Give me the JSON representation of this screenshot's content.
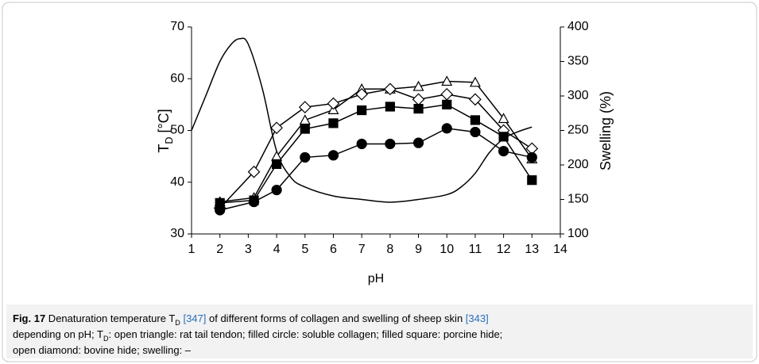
{
  "chart_data": {
    "type": "line",
    "xlabel": "pH",
    "ylabel": [
      {
        "text": "T",
        "style": "normal"
      },
      {
        "text": "D",
        "style": "sub"
      },
      {
        "text": " [°C]",
        "style": "normal"
      }
    ],
    "y2label": "Swelling (%)",
    "xlim": [
      1,
      14
    ],
    "xticks": [
      1,
      2,
      3,
      4,
      5,
      6,
      7,
      8,
      9,
      10,
      11,
      12,
      13,
      14
    ],
    "ylim": [
      30,
      70
    ],
    "yticks": [
      30,
      40,
      50,
      60,
      70
    ],
    "y2lim": [
      100,
      400
    ],
    "y2ticks": [
      100,
      150,
      200,
      250,
      300,
      350,
      400
    ],
    "series": [
      {
        "marker": "triangle",
        "filled": false,
        "color": "#000000",
        "x": [
          2,
          3.2,
          4,
          5,
          6,
          7,
          8,
          9,
          10,
          11,
          12,
          13
        ],
        "values": [
          36.2,
          37,
          45,
          52,
          54,
          58,
          58,
          58.5,
          59.5,
          59.3,
          52.3,
          44.5
        ]
      },
      {
        "marker": "diamond",
        "filled": false,
        "color": "#000000",
        "x": [
          2,
          3.2,
          4,
          5,
          6,
          7,
          8,
          9,
          10,
          11,
          12,
          13
        ],
        "values": [
          35,
          42,
          50.5,
          54.5,
          55.2,
          57,
          58,
          56,
          57,
          56,
          50,
          46.5
        ]
      },
      {
        "marker": "square",
        "filled": true,
        "color": "#000000",
        "x": [
          2,
          3.2,
          4,
          5,
          6,
          7,
          8,
          9,
          10,
          11,
          12,
          13
        ],
        "values": [
          36,
          36.5,
          43.5,
          50.3,
          51.4,
          53.9,
          54.6,
          54.2,
          55,
          52,
          48.8,
          40.4
        ]
      },
      {
        "marker": "circle",
        "filled": true,
        "color": "#000000",
        "x": [
          2,
          3.2,
          4,
          5,
          6,
          7,
          8,
          9,
          10,
          11,
          12,
          13
        ],
        "values": [
          34.6,
          36.2,
          38.5,
          44.8,
          45.2,
          47.4,
          47.4,
          47.6,
          50.4,
          49.7,
          46,
          44.8
        ]
      },
      {
        "marker": "none",
        "axis": "y2",
        "color": "#000000",
        "x": [
          1,
          1.5,
          2,
          2.4,
          2.7,
          3,
          3.5,
          4,
          4.5,
          5,
          6,
          7,
          8,
          9,
          10,
          10.5,
          11,
          11.5,
          12,
          12.5,
          13
        ],
        "values": [
          250,
          300,
          350,
          375,
          383,
          375,
          310,
          220,
          182,
          168,
          155,
          150,
          146,
          150,
          157,
          168,
          188,
          218,
          238,
          248,
          255
        ]
      }
    ],
    "caption": [
      [
        {
          "text": "Fig. 17",
          "style": "bold"
        },
        {
          "text": "  Denaturation temperature T",
          "style": "normal"
        },
        {
          "text": "D",
          "style": "sub"
        },
        {
          "text": " ",
          "style": "normal"
        },
        {
          "text": "[347]",
          "style": "ref"
        },
        {
          "text": " of different forms of collagen and swelling of sheep skin ",
          "style": "normal"
        },
        {
          "text": "[343]",
          "style": "ref"
        }
      ],
      [
        {
          "text": "depending on pH; T",
          "style": "normal"
        },
        {
          "text": "D",
          "style": "sub"
        },
        {
          "text": ": open triangle: rat tail tendon; filled circle: soluble collagen; filled square: porcine hide;",
          "style": "normal"
        }
      ],
      [
        {
          "text": "open diamond: bovine hide; swelling: –",
          "style": "normal"
        }
      ]
    ]
  }
}
